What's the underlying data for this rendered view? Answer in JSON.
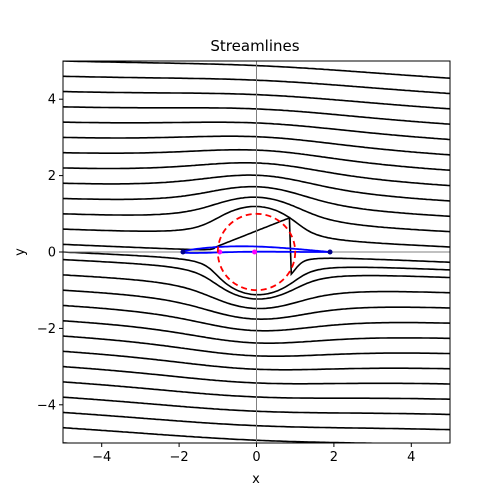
{
  "chart_data": {
    "type": "line",
    "title": "Streamlines",
    "xlabel": "x",
    "ylabel": "y",
    "xlim": [
      -5,
      5
    ],
    "ylim": [
      -5,
      5
    ],
    "xticks": [
      -4,
      -2,
      0,
      2,
      4
    ],
    "yticks": [
      -4,
      -2,
      0,
      2,
      4
    ],
    "xtick_labels": [
      "−4",
      "−2",
      "0",
      "2",
      "4"
    ],
    "ytick_labels": [
      "−4",
      "−2",
      "0",
      "2",
      "4"
    ],
    "grid": false,
    "streamline_color": "#000000",
    "streamline_y_left": [
      -5.0,
      -4.6,
      -4.2,
      -3.8,
      -3.4,
      -3.0,
      -2.6,
      -2.2,
      -1.8,
      -1.4,
      -1.0,
      -0.6,
      -0.2,
      0.0,
      0.2,
      0.6,
      1.0,
      1.4,
      1.8,
      2.2,
      2.6,
      3.0,
      3.4,
      3.8,
      4.2,
      4.6,
      5.0
    ],
    "uniform_slope": 0.045,
    "circle": {
      "center": [
        0.0,
        0.0
      ],
      "radius": 1.0,
      "color": "#ff0000",
      "style": "dashed"
    },
    "airfoil": {
      "color": "#0000ff",
      "leading_edge": [
        -1.9,
        0.0
      ],
      "trailing_edge": [
        1.9,
        0.0
      ],
      "marker_color": "#00008b",
      "inner_points": [
        [
          -0.95,
          0.0
        ],
        [
          -0.05,
          0.0
        ]
      ],
      "inner_marker_color": "#ff00ff"
    },
    "reference_axes": {
      "x": 0,
      "y": 0,
      "color": "#808080"
    }
  }
}
